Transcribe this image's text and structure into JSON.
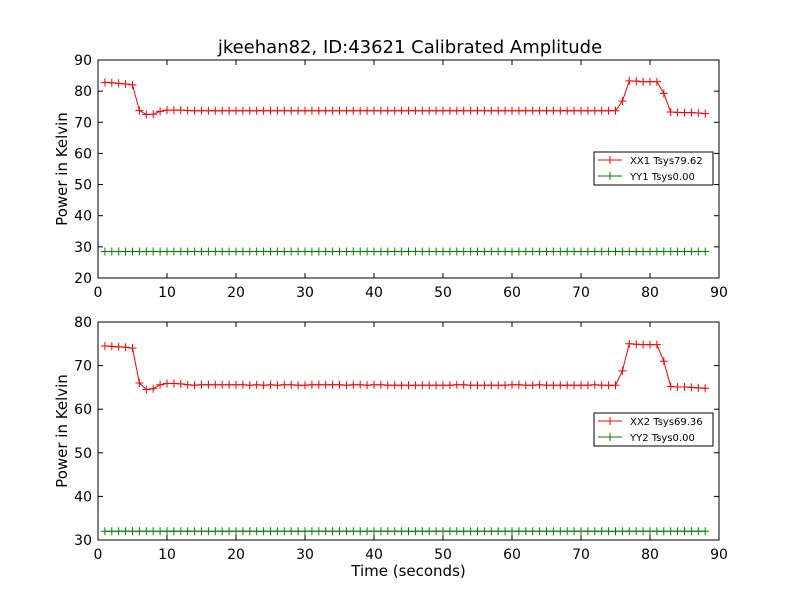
{
  "chart_data": [
    {
      "type": "line",
      "title": "jkeehan82, ID:43621 Calibrated Amplitude",
      "xlabel": "",
      "ylabel": "Power in Kelvin",
      "xlim": [
        0,
        90
      ],
      "ylim": [
        20,
        90
      ],
      "xticks": [
        "0",
        "10",
        "20",
        "30",
        "40",
        "50",
        "60",
        "70",
        "80",
        "90"
      ],
      "yticks": [
        "20",
        "30",
        "40",
        "50",
        "60",
        "70",
        "80",
        "90"
      ],
      "legend_position": "center-right",
      "series": [
        {
          "name": "XX1 Tsys79.62",
          "color": "#ff0000",
          "marker": "+",
          "x": [
            1,
            2,
            3,
            4,
            5,
            6,
            7,
            8,
            9,
            10,
            11,
            12,
            13,
            14,
            15,
            16,
            17,
            18,
            19,
            20,
            21,
            22,
            23,
            24,
            25,
            26,
            27,
            28,
            29,
            30,
            31,
            32,
            33,
            34,
            35,
            36,
            37,
            38,
            39,
            40,
            41,
            42,
            43,
            44,
            45,
            46,
            47,
            48,
            49,
            50,
            51,
            52,
            53,
            54,
            55,
            56,
            57,
            58,
            59,
            60,
            61,
            62,
            63,
            64,
            65,
            66,
            67,
            68,
            69,
            70,
            71,
            72,
            73,
            74,
            75,
            76,
            77,
            78,
            79,
            80,
            81,
            82,
            83,
            84,
            85,
            86,
            87,
            88
          ],
          "y": [
            82.8,
            82.7,
            82.5,
            82.3,
            82.0,
            73.8,
            72.5,
            72.6,
            73.5,
            73.9,
            73.9,
            73.9,
            73.8,
            73.7,
            73.7,
            73.7,
            73.7,
            73.7,
            73.7,
            73.7,
            73.7,
            73.7,
            73.7,
            73.7,
            73.7,
            73.7,
            73.7,
            73.7,
            73.7,
            73.7,
            73.7,
            73.7,
            73.7,
            73.7,
            73.7,
            73.7,
            73.7,
            73.7,
            73.7,
            73.7,
            73.7,
            73.7,
            73.7,
            73.7,
            73.7,
            73.7,
            73.7,
            73.7,
            73.7,
            73.7,
            73.7,
            73.7,
            73.7,
            73.7,
            73.7,
            73.7,
            73.7,
            73.7,
            73.7,
            73.7,
            73.7,
            73.7,
            73.7,
            73.7,
            73.7,
            73.7,
            73.7,
            73.7,
            73.7,
            73.7,
            73.7,
            73.7,
            73.7,
            73.7,
            73.7,
            76.8,
            83.3,
            83.2,
            83.0,
            83.0,
            83.0,
            79.3,
            73.3,
            73.2,
            73.1,
            73.1,
            73.0,
            72.8
          ]
        },
        {
          "name": "YY1 Tsys0.00",
          "color": "#008000",
          "marker": "+",
          "x": [
            1,
            2,
            3,
            4,
            5,
            6,
            7,
            8,
            9,
            10,
            11,
            12,
            13,
            14,
            15,
            16,
            17,
            18,
            19,
            20,
            21,
            22,
            23,
            24,
            25,
            26,
            27,
            28,
            29,
            30,
            31,
            32,
            33,
            34,
            35,
            36,
            37,
            38,
            39,
            40,
            41,
            42,
            43,
            44,
            45,
            46,
            47,
            48,
            49,
            50,
            51,
            52,
            53,
            54,
            55,
            56,
            57,
            58,
            59,
            60,
            61,
            62,
            63,
            64,
            65,
            66,
            67,
            68,
            69,
            70,
            71,
            72,
            73,
            74,
            75,
            76,
            77,
            78,
            79,
            80,
            81,
            82,
            83,
            84,
            85,
            86,
            87,
            88
          ],
          "y": [
            28.5,
            28.5,
            28.5,
            28.5,
            28.5,
            28.5,
            28.5,
            28.5,
            28.5,
            28.5,
            28.5,
            28.5,
            28.5,
            28.5,
            28.5,
            28.5,
            28.5,
            28.5,
            28.5,
            28.5,
            28.5,
            28.5,
            28.5,
            28.5,
            28.5,
            28.5,
            28.5,
            28.5,
            28.5,
            28.5,
            28.5,
            28.5,
            28.5,
            28.5,
            28.5,
            28.5,
            28.5,
            28.5,
            28.5,
            28.5,
            28.5,
            28.5,
            28.5,
            28.5,
            28.5,
            28.5,
            28.5,
            28.5,
            28.5,
            28.5,
            28.5,
            28.5,
            28.5,
            28.5,
            28.5,
            28.5,
            28.5,
            28.5,
            28.5,
            28.5,
            28.5,
            28.5,
            28.5,
            28.5,
            28.5,
            28.5,
            28.5,
            28.5,
            28.5,
            28.5,
            28.5,
            28.5,
            28.5,
            28.5,
            28.5,
            28.5,
            28.5,
            28.5,
            28.5,
            28.5,
            28.5,
            28.5,
            28.5,
            28.5,
            28.5,
            28.5,
            28.5,
            28.5
          ]
        }
      ]
    },
    {
      "type": "line",
      "title": "",
      "xlabel": "Time (seconds)",
      "ylabel": "Power in Kelvin",
      "xlim": [
        0,
        90
      ],
      "ylim": [
        30,
        80
      ],
      "xticks": [
        "0",
        "10",
        "20",
        "30",
        "40",
        "50",
        "60",
        "70",
        "80",
        "90"
      ],
      "yticks": [
        "30",
        "40",
        "50",
        "60",
        "70",
        "80"
      ],
      "legend_position": "center-right",
      "series": [
        {
          "name": "XX2 Tsys69.36",
          "color": "#ff0000",
          "marker": "+",
          "x": [
            1,
            2,
            3,
            4,
            5,
            6,
            7,
            8,
            9,
            10,
            11,
            12,
            13,
            14,
            15,
            16,
            17,
            18,
            19,
            20,
            21,
            22,
            23,
            24,
            25,
            26,
            27,
            28,
            29,
            30,
            31,
            32,
            33,
            34,
            35,
            36,
            37,
            38,
            39,
            40,
            41,
            42,
            43,
            44,
            45,
            46,
            47,
            48,
            49,
            50,
            51,
            52,
            53,
            54,
            55,
            56,
            57,
            58,
            59,
            60,
            61,
            62,
            63,
            64,
            65,
            66,
            67,
            68,
            69,
            70,
            71,
            72,
            73,
            74,
            75,
            76,
            77,
            78,
            79,
            80,
            81,
            82,
            83,
            84,
            85,
            86,
            87,
            88
          ],
          "y": [
            74.5,
            74.4,
            74.3,
            74.2,
            74.0,
            66.0,
            64.5,
            64.7,
            65.6,
            65.9,
            65.9,
            65.8,
            65.6,
            65.5,
            65.6,
            65.6,
            65.6,
            65.6,
            65.6,
            65.6,
            65.6,
            65.5,
            65.6,
            65.5,
            65.6,
            65.5,
            65.6,
            65.6,
            65.5,
            65.5,
            65.6,
            65.6,
            65.6,
            65.6,
            65.6,
            65.5,
            65.6,
            65.6,
            65.5,
            65.6,
            65.6,
            65.5,
            65.5,
            65.5,
            65.5,
            65.5,
            65.5,
            65.5,
            65.5,
            65.5,
            65.5,
            65.6,
            65.6,
            65.5,
            65.5,
            65.5,
            65.5,
            65.5,
            65.5,
            65.6,
            65.6,
            65.5,
            65.5,
            65.6,
            65.5,
            65.5,
            65.5,
            65.5,
            65.5,
            65.5,
            65.5,
            65.6,
            65.5,
            65.5,
            65.5,
            68.8,
            75.0,
            74.9,
            74.8,
            74.8,
            74.8,
            71.0,
            65.2,
            65.1,
            65.1,
            65.0,
            64.9,
            64.8
          ]
        },
        {
          "name": "YY2 Tsys0.00",
          "color": "#008000",
          "marker": "+",
          "x": [
            1,
            2,
            3,
            4,
            5,
            6,
            7,
            8,
            9,
            10,
            11,
            12,
            13,
            14,
            15,
            16,
            17,
            18,
            19,
            20,
            21,
            22,
            23,
            24,
            25,
            26,
            27,
            28,
            29,
            30,
            31,
            32,
            33,
            34,
            35,
            36,
            37,
            38,
            39,
            40,
            41,
            42,
            43,
            44,
            45,
            46,
            47,
            48,
            49,
            50,
            51,
            52,
            53,
            54,
            55,
            56,
            57,
            58,
            59,
            60,
            61,
            62,
            63,
            64,
            65,
            66,
            67,
            68,
            69,
            70,
            71,
            72,
            73,
            74,
            75,
            76,
            77,
            78,
            79,
            80,
            81,
            82,
            83,
            84,
            85,
            86,
            87,
            88
          ],
          "y": [
            32.0,
            32.0,
            32.0,
            32.0,
            32.0,
            32.0,
            32.0,
            32.0,
            32.0,
            32.0,
            32.0,
            32.0,
            32.0,
            32.0,
            32.0,
            32.0,
            32.0,
            32.0,
            32.0,
            32.0,
            32.0,
            32.0,
            32.0,
            32.0,
            32.0,
            32.0,
            32.0,
            32.0,
            32.0,
            32.0,
            32.0,
            32.0,
            32.0,
            32.0,
            32.0,
            32.0,
            32.0,
            32.0,
            32.0,
            32.0,
            32.0,
            32.0,
            32.0,
            32.0,
            32.0,
            32.0,
            32.0,
            32.0,
            32.0,
            32.0,
            32.0,
            32.0,
            32.0,
            32.0,
            32.0,
            32.0,
            32.0,
            32.0,
            32.0,
            32.0,
            32.0,
            32.0,
            32.0,
            32.0,
            32.0,
            32.0,
            32.0,
            32.0,
            32.0,
            32.0,
            32.0,
            32.0,
            32.0,
            32.0,
            32.0,
            32.0,
            32.0,
            32.0,
            32.0,
            32.0,
            32.0,
            32.0,
            32.0,
            32.0,
            32.0,
            32.0,
            32.0,
            32.0
          ]
        }
      ]
    }
  ]
}
